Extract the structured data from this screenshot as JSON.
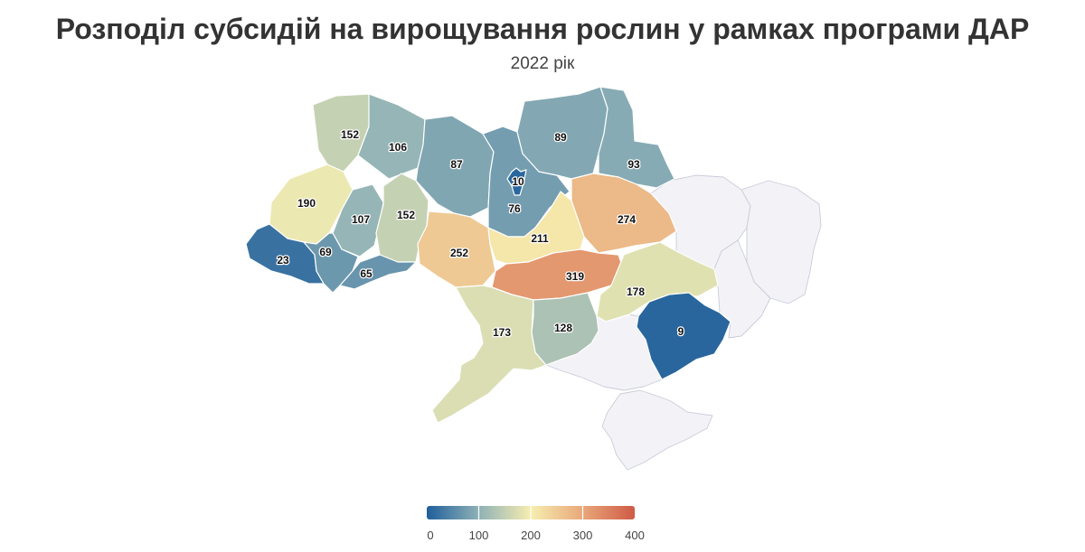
{
  "title": "Розподіл субсидій на вирощування рослин у рамках програми ДАР",
  "subtitle": "2022 рік",
  "chart_data": {
    "type": "choropleth",
    "regions": [
      {
        "id": "volyn",
        "value": 152,
        "label": "152"
      },
      {
        "id": "rivne",
        "value": 106,
        "label": "106"
      },
      {
        "id": "zhytomyr",
        "value": 87,
        "label": "87"
      },
      {
        "id": "kyiv-oblast",
        "value": 76,
        "label": "76"
      },
      {
        "id": "kyiv-city",
        "value": 10,
        "label": "10"
      },
      {
        "id": "chernihiv",
        "value": 89,
        "label": "89"
      },
      {
        "id": "sumy",
        "value": 93,
        "label": "93"
      },
      {
        "id": "lviv",
        "value": 190,
        "label": "190"
      },
      {
        "id": "ternopil",
        "value": 107,
        "label": "107"
      },
      {
        "id": "khmelnytskyi",
        "value": 152,
        "label": "152"
      },
      {
        "id": "vinnytsia",
        "value": 252,
        "label": "252"
      },
      {
        "id": "cherkasy",
        "value": 211,
        "label": "211"
      },
      {
        "id": "poltava",
        "value": 274,
        "label": "274"
      },
      {
        "id": "zakarpattia",
        "value": 23,
        "label": "23"
      },
      {
        "id": "ivano-frankivsk",
        "value": 69,
        "label": "69"
      },
      {
        "id": "chernivtsi",
        "value": 65,
        "label": "65"
      },
      {
        "id": "kirovohrad",
        "value": 319,
        "label": "319"
      },
      {
        "id": "dnipropetrovsk",
        "value": 178,
        "label": "178"
      },
      {
        "id": "odesa",
        "value": 173,
        "label": "173"
      },
      {
        "id": "mykolaiv",
        "value": 128,
        "label": "128"
      },
      {
        "id": "zaporizhzhia",
        "value": 9,
        "label": "9"
      }
    ],
    "no_data_regions": [
      "kharkiv",
      "luhansk",
      "donetsk",
      "kherson",
      "crimea"
    ],
    "color_scale": {
      "domain": [
        0,
        100,
        200,
        300,
        400
      ],
      "colors": [
        "#1f5f9b",
        "#8fb1b6",
        "#f6eeb0",
        "#e9a77a",
        "#cf5a45"
      ],
      "no_data_color": "#f3f3f7"
    },
    "legend": {
      "ticks": [
        "0",
        "100",
        "200",
        "300",
        "400"
      ],
      "range": [
        0,
        400
      ]
    }
  }
}
